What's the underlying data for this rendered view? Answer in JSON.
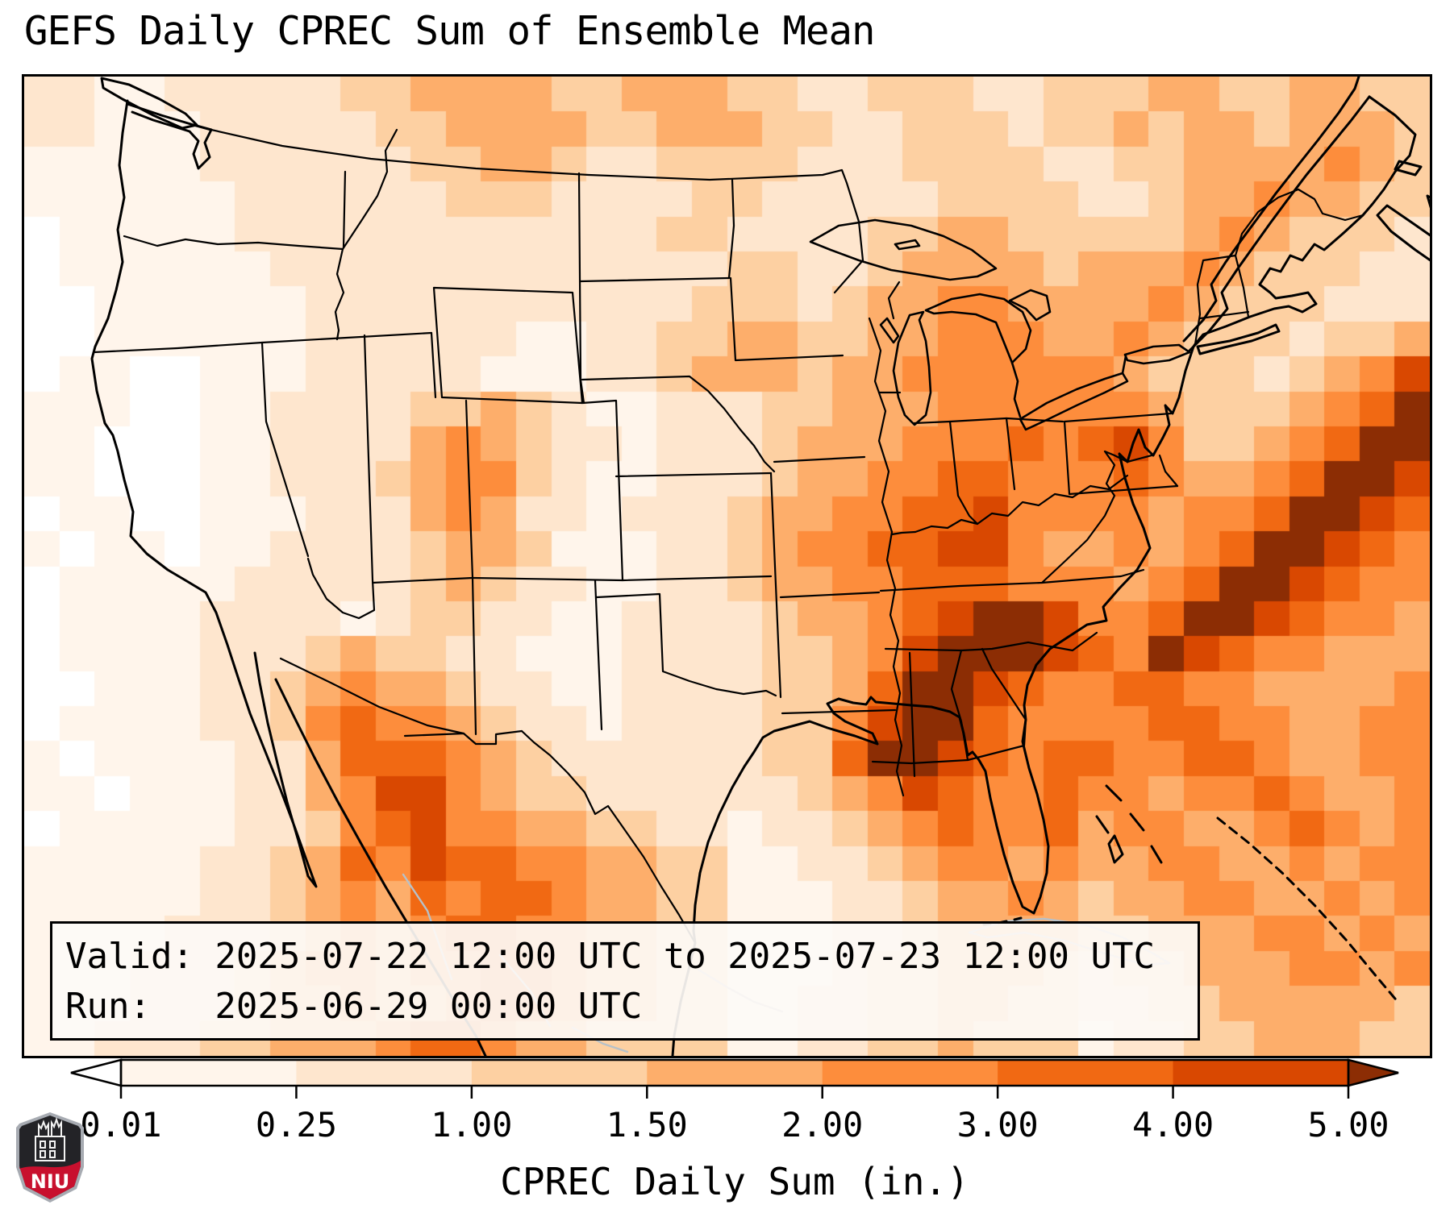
{
  "title": "GEFS Daily CPREC Sum of Ensemble Mean",
  "info_box": {
    "line1": "Valid: 2025-07-22 12:00 UTC to 2025-07-23 12:00 UTC",
    "line2": "Run:   2025-06-29 00:00 UTC"
  },
  "logo": {
    "text": "NIU",
    "red": "#c8102e",
    "dark": "#232327",
    "rim": "#a7abb2"
  },
  "chart_data": {
    "type": "heatmap",
    "title": "GEFS Daily CPREC Sum of Ensemble Mean",
    "valid": "2025-07-22 12:00 UTC to 2025-07-23 12:00 UTC",
    "run": "2025-06-29 00:00 UTC",
    "colorbar": {
      "label": "CPREC Daily Sum (in.)",
      "tick_labels": [
        "0.01",
        "0.25",
        "1.00",
        "1.50",
        "2.00",
        "3.00",
        "4.00",
        "5.00"
      ],
      "boundaries_in": [
        0.01,
        0.25,
        1.0,
        1.5,
        2.0,
        3.0,
        4.0,
        5.0
      ],
      "bin_colors": [
        "#fff5eb",
        "#fee6ce",
        "#fdd0a2",
        "#fdae6b",
        "#fd8d3c",
        "#f16913",
        "#d94801"
      ],
      "under_color": "#ffffff",
      "over_color": "#8c2d04",
      "extend": "both",
      "orientation": "horizontal"
    },
    "grid": {
      "cols": 40,
      "rows": 28,
      "palette": [
        "#ffffff",
        "#fff5eb",
        "#fee6ce",
        "#fdd0a2",
        "#fdae6b",
        "#fd8d3c",
        "#f16913",
        "#d94801",
        "#8c2d04"
      ],
      "legend": "each digit = color bin index: 0 under 0.01in ... 8 over 5.00in",
      "cell_values_rows": [
        "2211222223344443344433223332233344334433",
        "2211122222334444334443322333233434434443",
        "1111122222233443223333222333322334444543",
        "1111112222223332222332222233332234454433",
        "0111112222222222223322223344333334543332",
        "0111111222222222222233223444434445433322",
        "0011111122222222222333234455444454333222",
        "0011111122222211223344334455544543332334",
        "0110011122222111223444344555555433323457",
        "1110011222233432112223344455555543334568",
        "1100011222245432212223444555656753345688",
        "1100011222345532112223445566555654456887",
        "0110011122245422122234455667555545568876",
        "1011011222234431112234556677544545688765",
        "0111112222234322112234455666555456887655",
        "0111122221233221122223445678875568876554",
        "0111122234332211122223345788876587655444",
        "0011122345443221122223346887655665544445",
        "0111122356554322122223357886555566554455",
        "1011112246665432222223368876566556654455",
        "1101112245775433222222345765565545565445",
        "0111112235675544332212234565564554456545",
        "1111122346576655443311223455454455445455",
        "1111122345465665443311122344543445544545",
        "1111222345456655443311122344443344455454",
        "1112223455455665443311123344432334445545",
        "1112223445445665443311223344332233444443",
        "1122233444566544333311223343331223344433"
      ]
    }
  }
}
